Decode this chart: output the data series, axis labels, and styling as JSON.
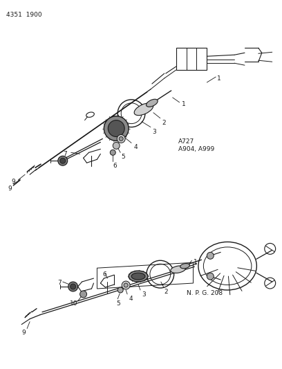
{
  "title": "4351  1900",
  "background_color": "#ffffff",
  "text_color": "#1a1a1a",
  "annotation1": "A727\nA904, A999",
  "annotation2": "N. P. G. 208",
  "line_color": "#1a1a1a",
  "fig_width": 4.08,
  "fig_height": 5.33,
  "dpi": 100
}
